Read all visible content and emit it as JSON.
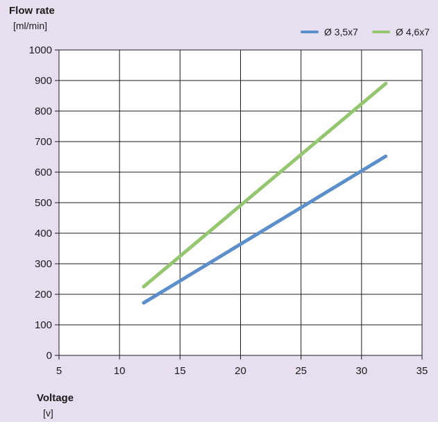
{
  "chart_data": {
    "type": "line",
    "ylabel": "Flow rate",
    "yunit": "[ml/min]",
    "xlabel": "Voltage",
    "xunit": "[v]",
    "xlim": [
      5,
      35
    ],
    "ylim": [
      0,
      1000
    ],
    "xticks": [
      5,
      10,
      15,
      20,
      25,
      30,
      35
    ],
    "yticks": [
      0,
      100,
      200,
      300,
      400,
      500,
      600,
      700,
      800,
      900,
      1000
    ],
    "grid": true,
    "legend_position": "top-right",
    "series": [
      {
        "name": "Ø 3,5x7",
        "color": "#5b8fcb",
        "points": [
          [
            12,
            172
          ],
          [
            32,
            652
          ]
        ]
      },
      {
        "name": "Ø 4,6x7",
        "color": "#93c66e",
        "points": [
          [
            12,
            225
          ],
          [
            32,
            890
          ]
        ]
      }
    ]
  }
}
